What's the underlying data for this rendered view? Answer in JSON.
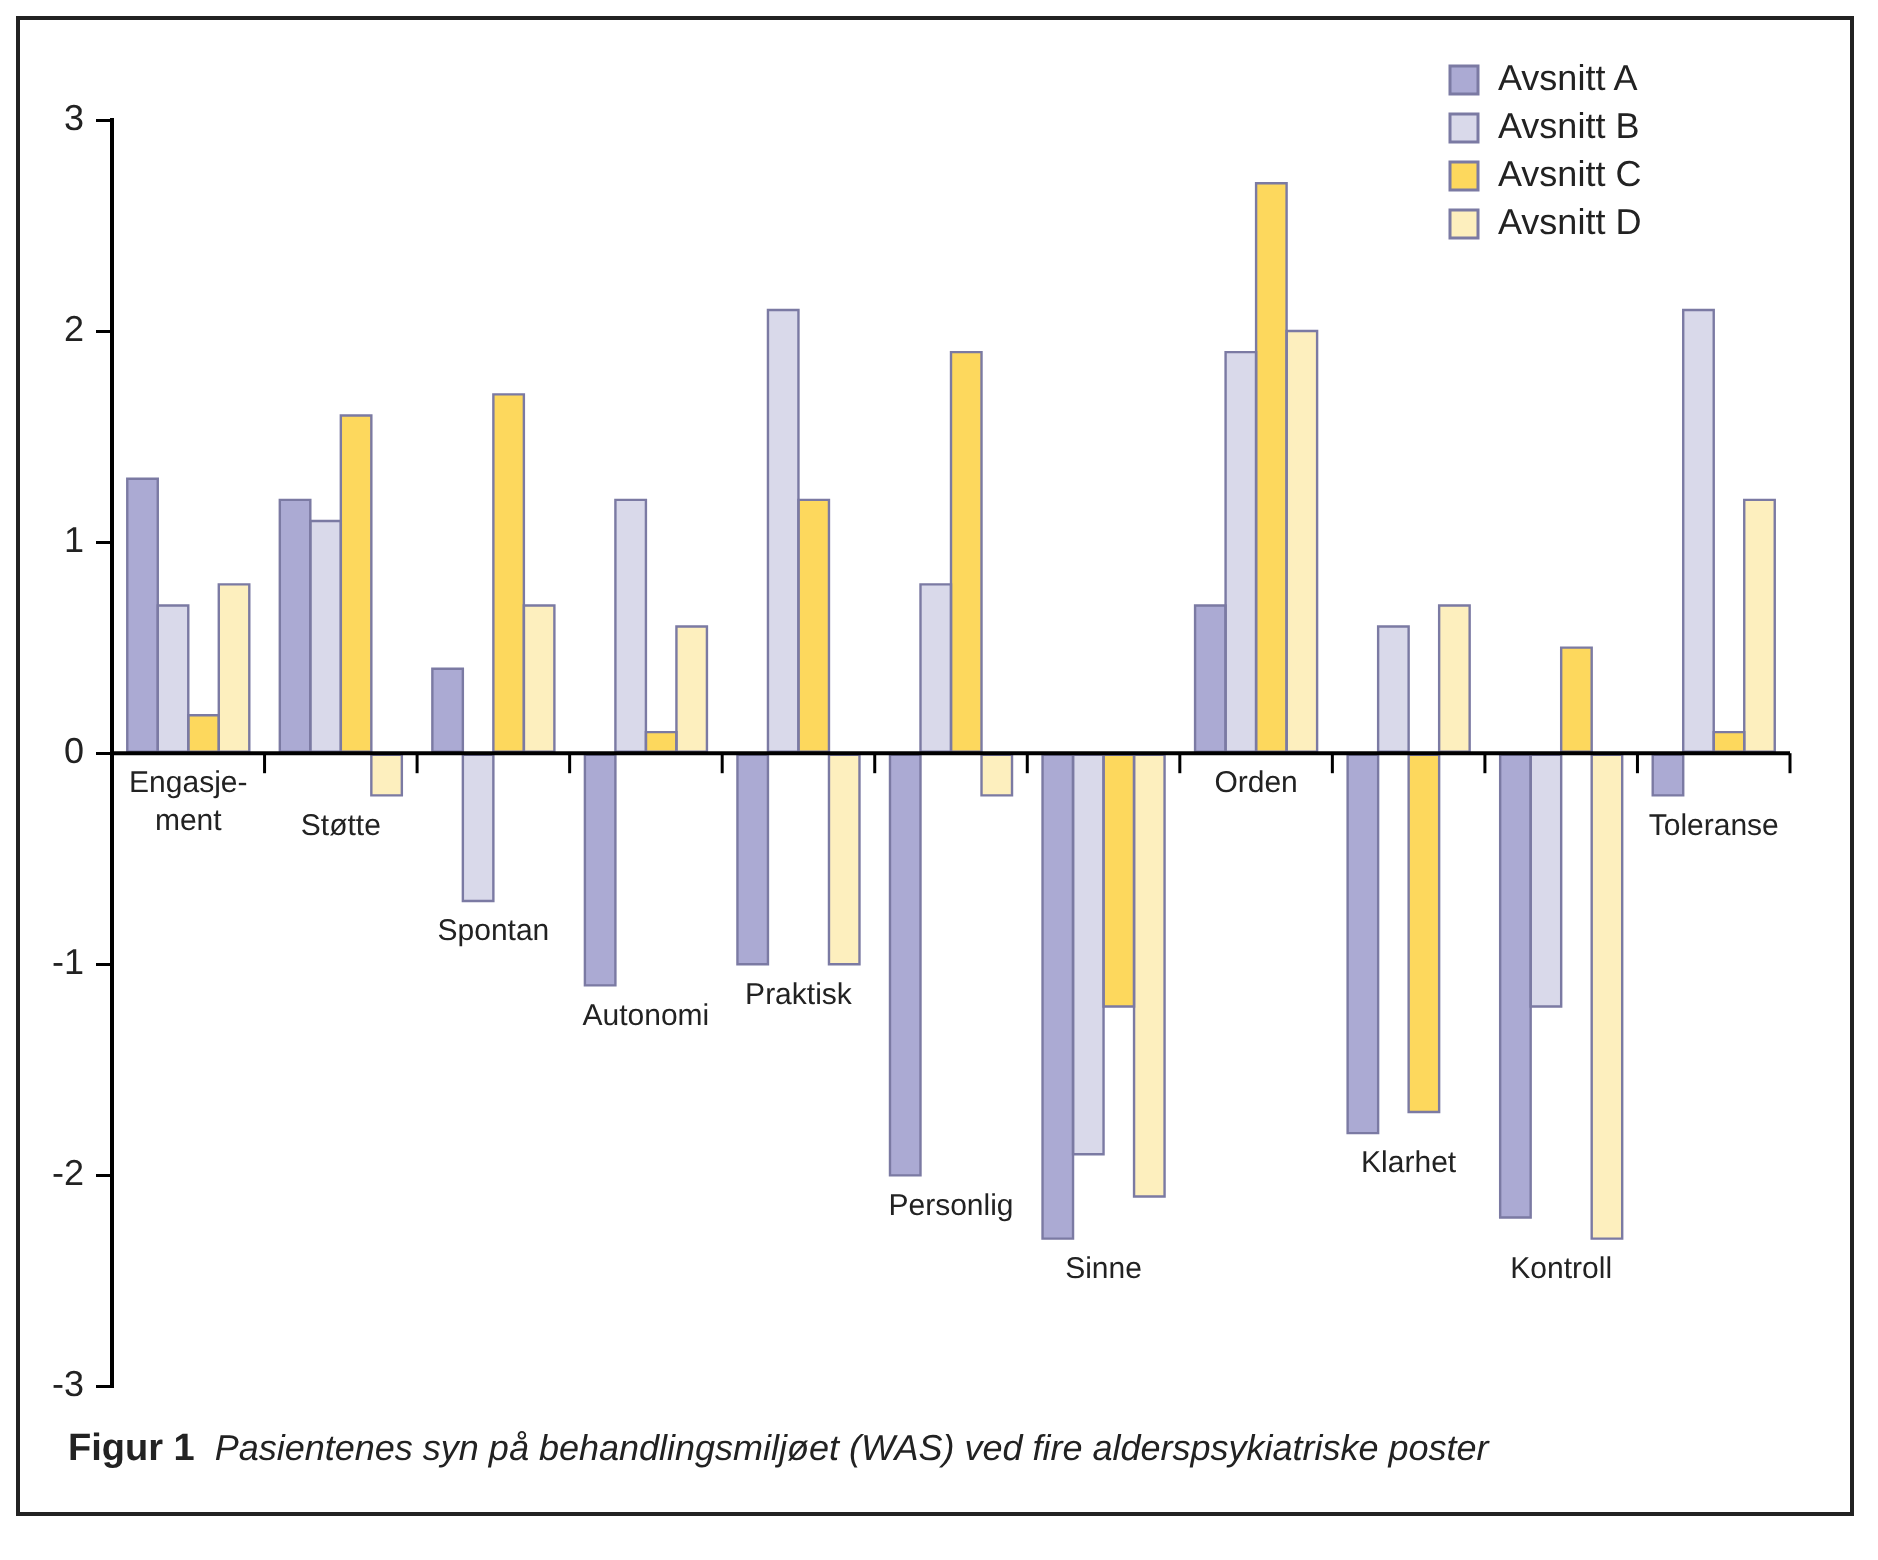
{
  "chart_data": {
    "type": "bar",
    "title": "Figur 1",
    "subtitle": "Pasientenes syn på behandlingsmiljøet (WAS) ved fire alderspsykiatriske poster",
    "categories": [
      "Engasje-ment",
      "Støtte",
      "Spontan",
      "Autonomi",
      "Praktisk",
      "Personlig",
      "Sinne",
      "Orden",
      "Klarhet",
      "Kontroll",
      "Toleranse"
    ],
    "series": [
      {
        "name": "Avsnitt A",
        "color": "#abaad3",
        "values": [
          1.3,
          1.2,
          0.4,
          -1.1,
          -1.0,
          -2.0,
          -2.3,
          0.7,
          -1.8,
          -2.2,
          -0.2
        ]
      },
      {
        "name": "Avsnitt B",
        "color": "#d9d9ea",
        "values": [
          0.7,
          1.1,
          -0.7,
          1.2,
          2.1,
          0.8,
          -1.9,
          1.9,
          0.6,
          -1.2,
          2.1
        ]
      },
      {
        "name": "Avsnitt C",
        "color": "#fdd85d",
        "values": [
          0.18,
          1.6,
          1.7,
          0.1,
          1.2,
          1.9,
          -1.2,
          2.7,
          -1.7,
          0.5,
          0.1
        ]
      },
      {
        "name": "Avsnitt D",
        "color": "#fdefbe",
        "values": [
          0.8,
          -0.2,
          0.7,
          0.6,
          -1.0,
          -0.2,
          -2.1,
          2.0,
          0.7,
          -2.3,
          1.2
        ]
      }
    ],
    "ylim": [
      -3,
      3
    ],
    "yticks": [
      -3,
      -2,
      -1,
      0,
      1,
      2,
      3
    ],
    "grid": false,
    "legend": "top right"
  }
}
